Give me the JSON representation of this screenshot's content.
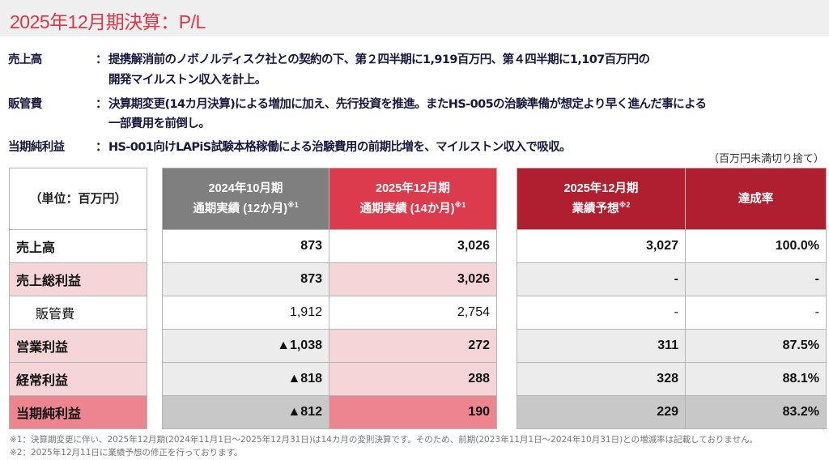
{
  "title": "2025年12月期決算：P/L",
  "notes": [
    {
      "label": "売上高",
      "colon": "：",
      "lines": [
        "提携解消前のノボノルディスク社との契約の下、第２四半期に1,919百万円、第４四半期に1,107百万円の",
        "開発マイルストン収入を計上。"
      ]
    },
    {
      "label": "販管費",
      "colon": "：",
      "lines": [
        "決算期変更(14カ月決算)による増加に加え、先行投資を推進。またHS-005の治験準備が想定より早く進んだ事による",
        "一部費用を前倒し。"
      ]
    },
    {
      "label": "当期純利益",
      "colon": "：",
      "lines": [
        "HS-001向けLAPiS試験本格稼働による治験費用の前期比増を、マイルストン収入で吸収。"
      ]
    }
  ],
  "unit_note": "（百万円未満切り捨て）",
  "table": {
    "unit_header": "（単位：百万円）",
    "headers": [
      {
        "l1": "2024年10月期",
        "l2": "通期実績 (12か月)",
        "sup": "※1"
      },
      {
        "l1": "2025年12月期",
        "l2": "通期実績 (14か月)",
        "sup": "※1"
      },
      {
        "l1": "2025年12月期",
        "l2": "業績予想",
        "sup": "※2"
      },
      {
        "l1": "達成率"
      }
    ],
    "rows": [
      {
        "label": "売上高",
        "v": [
          "873",
          "3,026",
          "3,027",
          "100.0%"
        ]
      },
      {
        "label": "売上総利益",
        "v": [
          "873",
          "3,026",
          "-",
          "-"
        ]
      },
      {
        "label": "販管費",
        "v": [
          "1,912",
          "2,754",
          "-",
          "-"
        ]
      },
      {
        "label": "営業利益",
        "v": [
          "▲1,038",
          "272",
          "311",
          "87.5%"
        ]
      },
      {
        "label": "経常利益",
        "v": [
          "▲818",
          "288",
          "328",
          "88.1%"
        ]
      },
      {
        "label": "当期純利益",
        "v": [
          "▲812",
          "190",
          "229",
          "83.2%"
        ]
      }
    ]
  },
  "footnotes": [
    "※1：決算期変更に伴い、2025年12月期(2024年11月1日～2025年12月31日)は14カ月の変則決算です。そのため、前期(2023年11月1日～2024年10月31日)との増減率は記載しておりません。",
    "※2：2025年12月11日に業績予想の修正を行っております。"
  ]
}
